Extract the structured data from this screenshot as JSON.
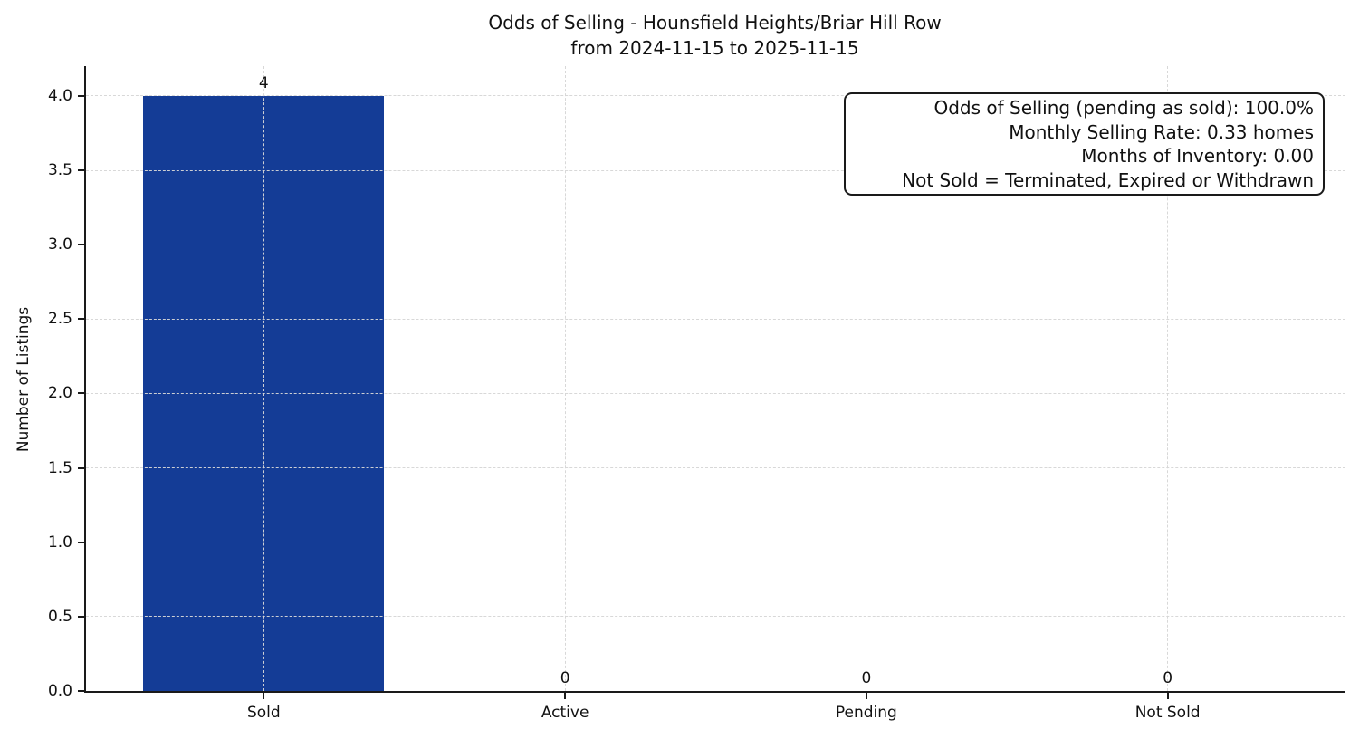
{
  "chart_data": {
    "type": "bar",
    "title": "Odds of Selling - Hounsfield Heights/Briar Hill Row",
    "subtitle": "from 2024-11-15 to 2025-11-15",
    "xlabel": "",
    "ylabel": "Number of Listings",
    "categories": [
      "Sold",
      "Active",
      "Pending",
      "Not Sold"
    ],
    "values": [
      4,
      0,
      0,
      0
    ],
    "value_labels": [
      "4",
      "0",
      "0",
      "0"
    ],
    "yticks": [
      0.0,
      0.5,
      1.0,
      1.5,
      2.0,
      2.5,
      3.0,
      3.5,
      4.0
    ],
    "ytick_labels": [
      "0.0",
      "0.5",
      "1.0",
      "1.5",
      "2.0",
      "2.5",
      "3.0",
      "3.5",
      "4.0"
    ],
    "ylim": [
      0,
      4.2
    ],
    "xlim": [
      -0.59,
      3.59
    ],
    "bar_width": 0.8,
    "grid": true,
    "legend_position": "none",
    "colors": {
      "bar": "#143C96",
      "grid": "#d6d6d6",
      "axis": "#1a1a1a",
      "text": "#111111",
      "background": "#ffffff"
    },
    "annotation": {
      "lines": [
        "Odds of Selling (pending as sold): 100.0%",
        "Monthly Selling Rate: 0.33 homes",
        "Months of Inventory: 0.00",
        "Not Sold = Terminated, Expired or Withdrawn"
      ]
    }
  }
}
